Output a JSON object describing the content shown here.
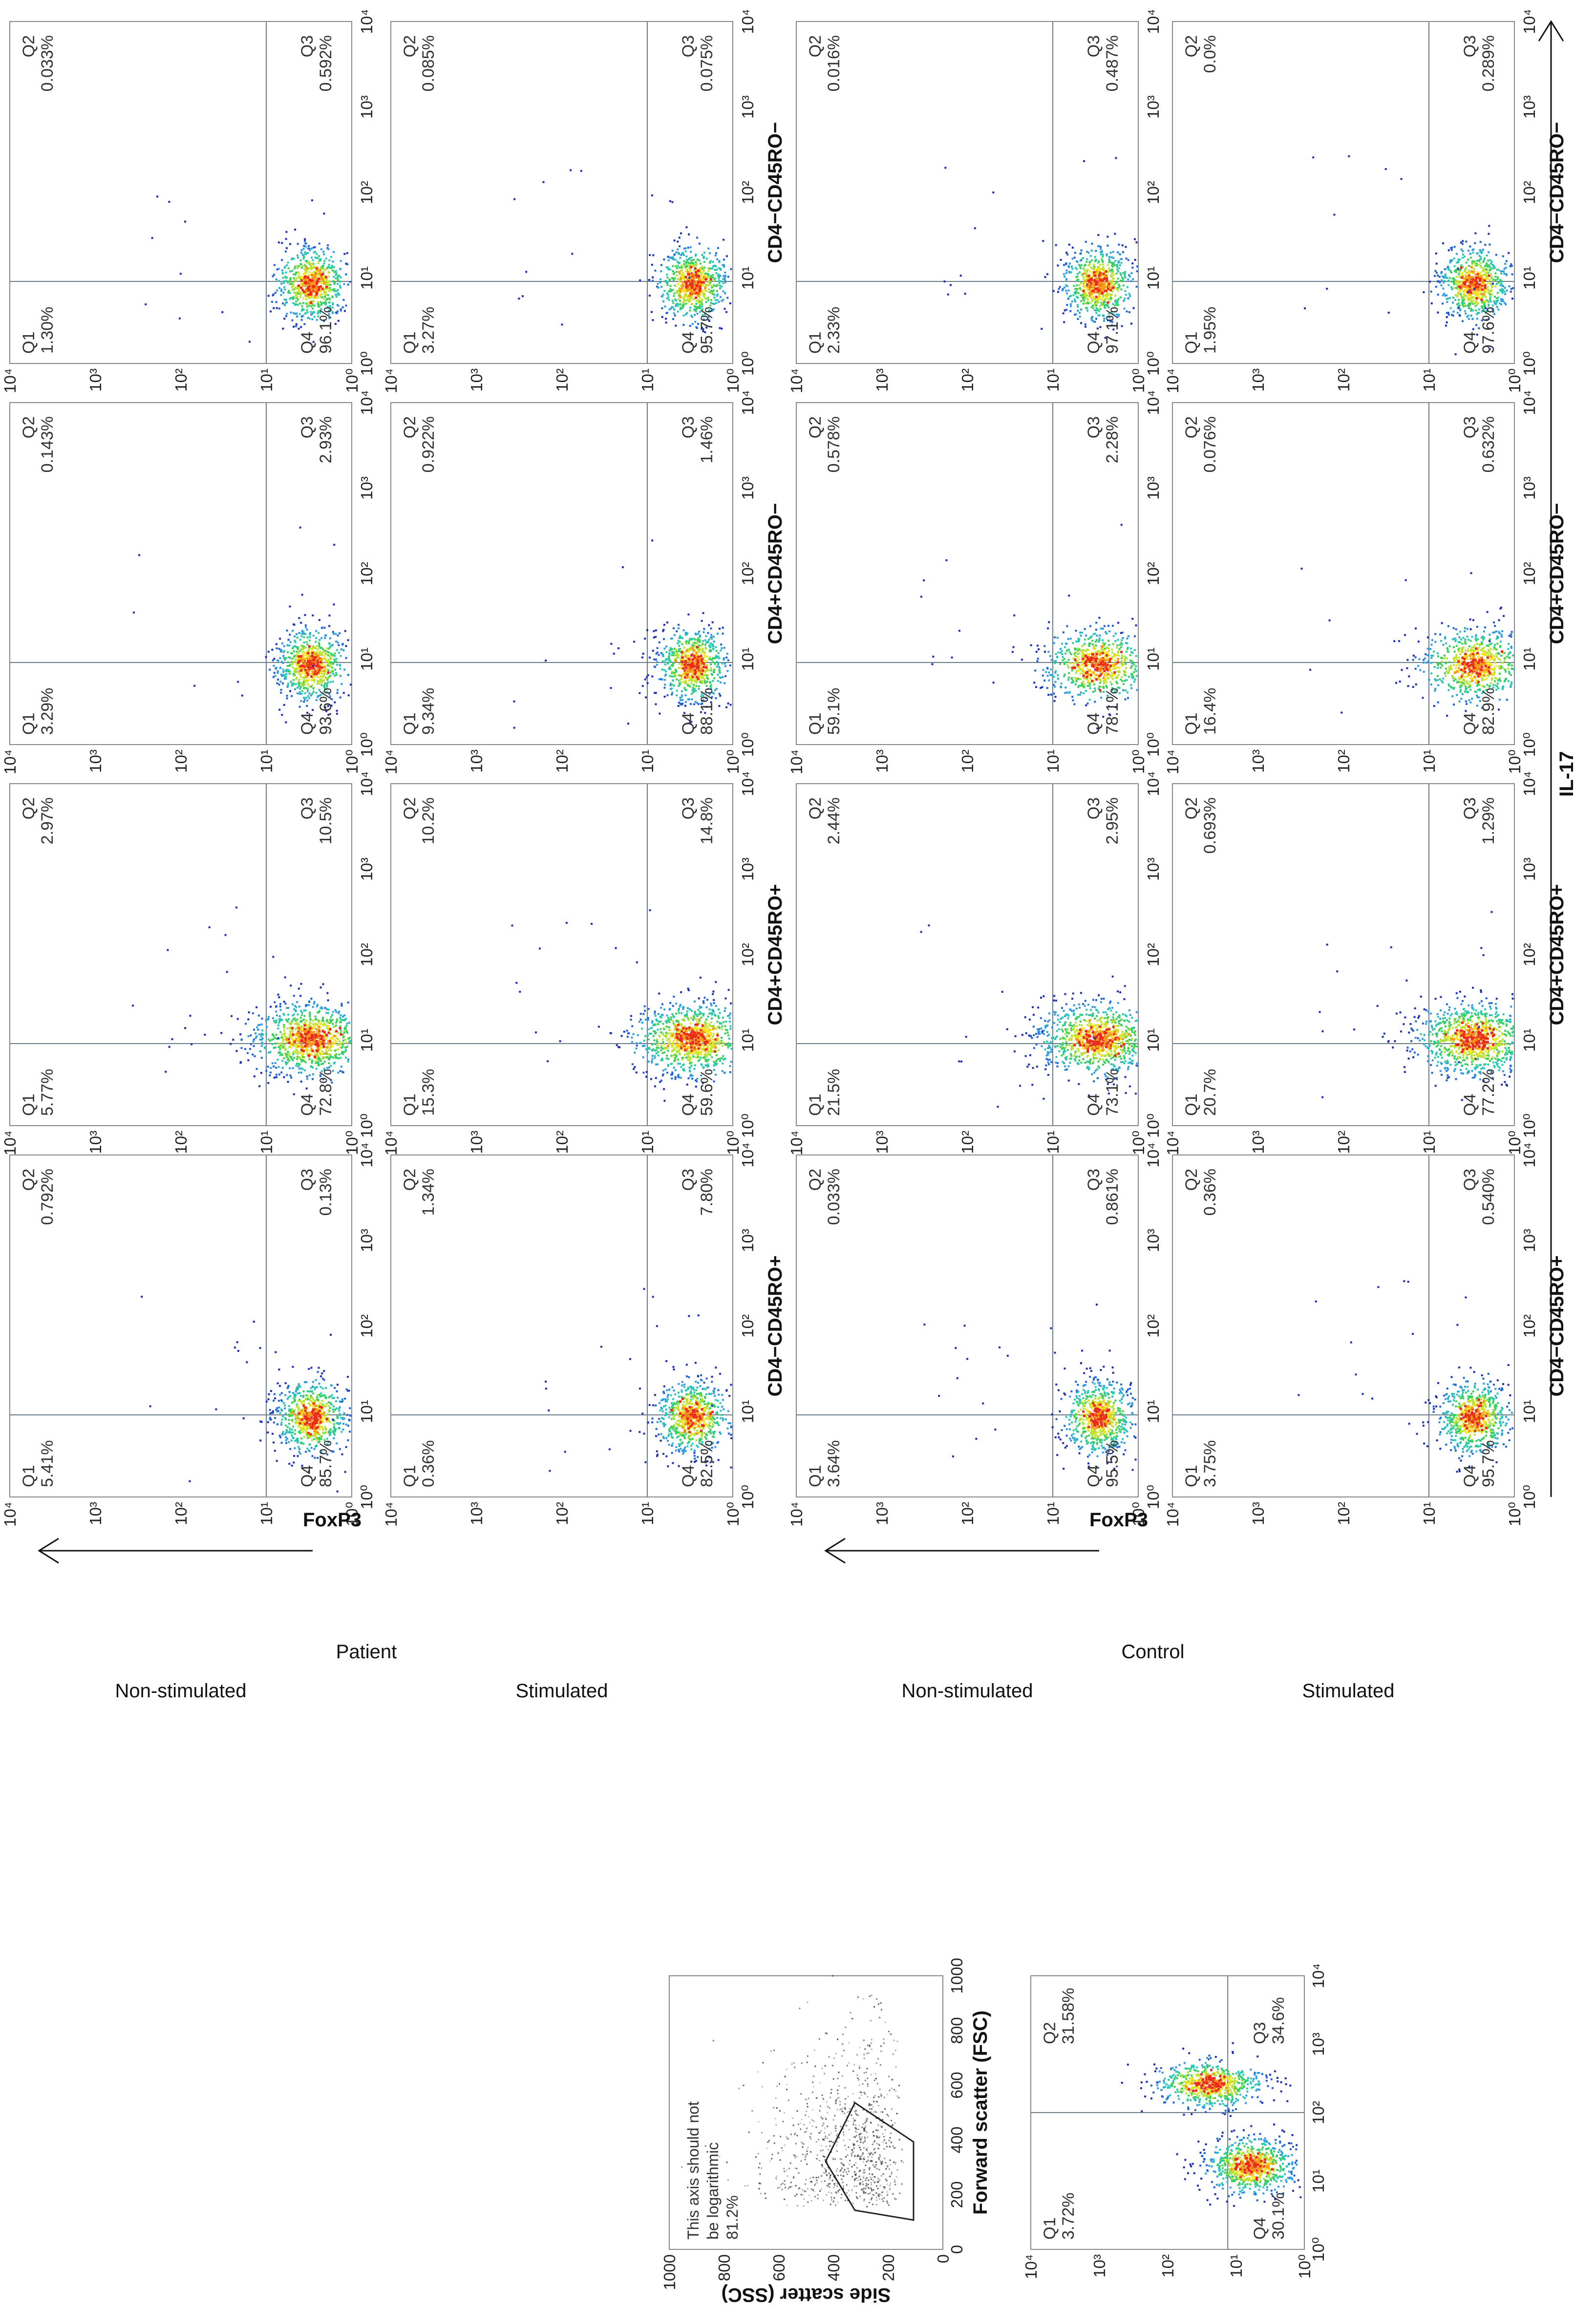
{
  "colors": {
    "ink": "#222222",
    "frame": "#888888",
    "gate": "#6a7c8c",
    "bg": "#ffffff"
  },
  "chart_data": [
    {
      "type": "scatter",
      "panel": "FSC vs SSC gating",
      "xlabel": "Forward scatter (FSC)",
      "ylabel": "Side scatter (SSC)",
      "xticks": [
        "0",
        "200",
        "400",
        "600",
        "800",
        "1000"
      ],
      "yticks": [
        "1000",
        "800",
        "600",
        "400",
        "200",
        "0"
      ],
      "xlim": [
        0,
        1000
      ],
      "ylim": [
        0,
        1000
      ],
      "annotations": [
        "This axis should not",
        "be logarithmic",
        "81.2%"
      ],
      "gate_percent": "81.2%"
    },
    {
      "type": "scatter",
      "panel": "CD4 vs CD45RO quadrant",
      "xticks": [
        "10⁰",
        "10¹",
        "10²",
        "10³",
        "10⁴"
      ],
      "yticks": [
        "10⁴",
        "10³",
        "10²",
        "10¹",
        "10⁰"
      ],
      "quadrants": [
        {
          "name": "Q1",
          "value": "3.72%"
        },
        {
          "name": "Q2",
          "value": "31.58%"
        },
        {
          "name": "Q3",
          "value": "34.6%"
        },
        {
          "name": "Q4",
          "value": "30.1%"
        }
      ]
    },
    {
      "type": "scatter",
      "title": "IL-17 vs FoxP3 quadrant grid",
      "xlabel": "IL-17",
      "ylabel": "FoxP3",
      "xscale": "log",
      "yscale": "log",
      "xlim": [
        1,
        10000
      ],
      "ylim": [
        1,
        10000
      ],
      "ticks": [
        "10⁰",
        "10¹",
        "10²",
        "10³",
        "10⁴"
      ],
      "groups": [
        "Patient",
        "Control"
      ],
      "conditions": [
        "Non-stimulated",
        "Stimulated"
      ],
      "subsets": [
        "CD4−CD45RO+",
        "CD4+CD45RO+",
        "CD4+CD45RO−",
        "CD4−CD45RO−"
      ],
      "panels": [
        {
          "group": "Patient",
          "condition": "Non-stimulated",
          "subset": "CD4−CD45RO+",
          "Q1": "5.41%",
          "Q2": "0.792%",
          "Q3": "0.13%",
          "Q4": "85.7%"
        },
        {
          "group": "Patient",
          "condition": "Non-stimulated",
          "subset": "CD4+CD45RO+",
          "Q1": "5.77%",
          "Q2": "2.97%",
          "Q3": "10.5%",
          "Q4": "72.8%"
        },
        {
          "group": "Patient",
          "condition": "Non-stimulated",
          "subset": "CD4+CD45RO−",
          "Q1": "3.29%",
          "Q2": "0.143%",
          "Q3": "2.93%",
          "Q4": "93.6%"
        },
        {
          "group": "Patient",
          "condition": "Non-stimulated",
          "subset": "CD4−CD45RO−",
          "Q1": "1.30%",
          "Q2": "0.033%",
          "Q3": "0.592%",
          "Q4": "96.1%"
        },
        {
          "group": "Patient",
          "condition": "Stimulated",
          "subset": "CD4−CD45RO+",
          "Q1": "0.36%",
          "Q2": "1.34%",
          "Q3": "7.80%",
          "Q4": "82.5%"
        },
        {
          "group": "Patient",
          "condition": "Stimulated",
          "subset": "CD4+CD45RO+",
          "Q1": "15.3%",
          "Q2": "10.2%",
          "Q3": "14.8%",
          "Q4": "59.6%"
        },
        {
          "group": "Patient",
          "condition": "Stimulated",
          "subset": "CD4+CD45RO−",
          "Q1": "9.34%",
          "Q2": "0.922%",
          "Q3": "1.46%",
          "Q4": "88.1%"
        },
        {
          "group": "Patient",
          "condition": "Stimulated",
          "subset": "CD4−CD45RO−",
          "Q1": "3.27%",
          "Q2": "0.085%",
          "Q3": "0.075%",
          "Q4": "95.7%"
        },
        {
          "group": "Control",
          "condition": "Non-stimulated",
          "subset": "CD4−CD45RO+",
          "Q1": "3.64%",
          "Q2": "0.033%",
          "Q3": "0.861%",
          "Q4": "95.5%"
        },
        {
          "group": "Control",
          "condition": "Non-stimulated",
          "subset": "CD4+CD45RO+",
          "Q1": "21.5%",
          "Q2": "2.44%",
          "Q3": "2.95%",
          "Q4": "73.1%"
        },
        {
          "group": "Control",
          "condition": "Non-stimulated",
          "subset": "CD4+CD45RO−",
          "Q1": "59.1%",
          "Q2": "0.578%",
          "Q3": "2.28%",
          "Q4": "78.1%"
        },
        {
          "group": "Control",
          "condition": "Non-stimulated",
          "subset": "CD4−CD45RO−",
          "Q1": "2.33%",
          "Q2": "0.016%",
          "Q3": "0.487%",
          "Q4": "97.1%"
        },
        {
          "group": "Control",
          "condition": "Stimulated",
          "subset": "CD4−CD45RO+",
          "Q1": "3.75%",
          "Q2": "0.36%",
          "Q3": "0.540%",
          "Q4": "95.7%"
        },
        {
          "group": "Control",
          "condition": "Stimulated",
          "subset": "CD4+CD45RO+",
          "Q1": "20.7%",
          "Q2": "0.693%",
          "Q3": "1.29%",
          "Q4": "77.2%"
        },
        {
          "group": "Control",
          "condition": "Stimulated",
          "subset": "CD4+CD45RO−",
          "Q1": "16.4%",
          "Q2": "0.076%",
          "Q3": "0.632%",
          "Q4": "82.9%"
        },
        {
          "group": "Control",
          "condition": "Stimulated",
          "subset": "CD4−CD45RO−",
          "Q1": "1.95%",
          "Q2": "0.0%",
          "Q3": "0.289%",
          "Q4": "97.6%"
        }
      ]
    }
  ]
}
